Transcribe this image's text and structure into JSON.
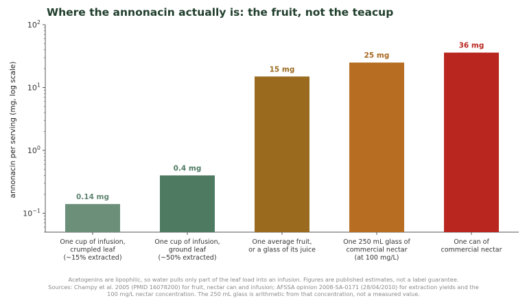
{
  "chart_data": {
    "type": "bar",
    "title": "Where the annonacin actually is: the fruit, not the teacup",
    "ylabel": "annonacin per serving (mg, log scale)",
    "yscale": "log",
    "ylim": [
      0.05,
      100
    ],
    "yticks": [
      {
        "value": 100,
        "base": "10",
        "exp": "2"
      },
      {
        "value": 10,
        "base": "10",
        "exp": "1"
      },
      {
        "value": 1,
        "base": "10",
        "exp": "0"
      },
      {
        "value": 0.1,
        "base": "10",
        "exp": "−1"
      }
    ],
    "categories": [
      [
        "One cup of infusion,",
        "crumpled leaf",
        "(~15% extracted)"
      ],
      [
        "One cup of infusion,",
        "ground leaf",
        "(~50% extracted)"
      ],
      [
        "One average fruit,",
        "or a glass of its juice"
      ],
      [
        "One 250 mL glass of",
        "commercial nectar",
        "(at 100 mg/L)"
      ],
      [
        "One can of",
        "commercial nectar"
      ]
    ],
    "values": [
      0.14,
      0.4,
      15,
      25,
      36
    ],
    "value_labels": [
      "0.14 mg",
      "0.4 mg",
      "15 mg",
      "25 mg",
      "36 mg"
    ],
    "bar_colors": [
      "#6b8f78",
      "#4f7a62",
      "#9a6a1f",
      "#b76e22",
      "#b8261f"
    ],
    "label_colors": [
      "#5f8470",
      "#4f7a62",
      "#9a6a1f",
      "#a8661e",
      "#b8261f"
    ],
    "grid": false
  },
  "footnote": [
    "Acetogenins are lipophilic, so water pulls only part of the leaf load into an infusion. Figures are published estimates, not a label guarantee.",
    "Sources: Champy et al. 2005 (PMID 16078200) for fruit, nectar can and infusion; AFSSA opinion 2008-SA-0171 (28/04/2010) for extraction yields and the",
    "100 mg/L nectar concentration. The 250 mL glass is arithmetic from that concentration, not a measured value."
  ]
}
